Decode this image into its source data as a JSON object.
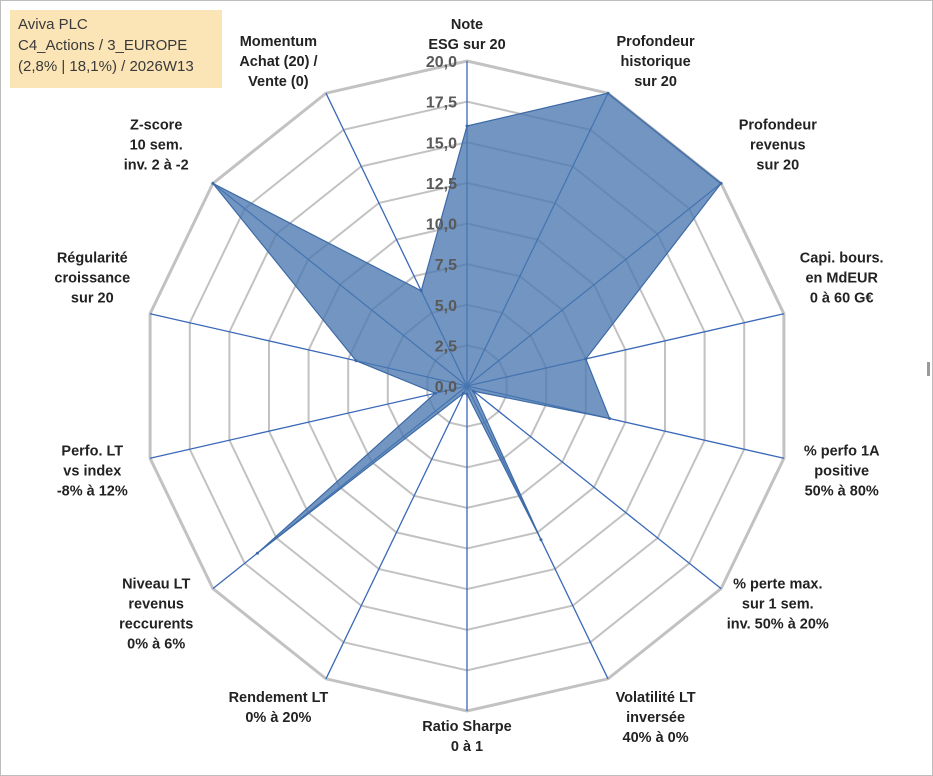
{
  "info": {
    "line1": "Aviva PLC",
    "line2": "C4_Actions / 3_EUROPE",
    "line3": "(2,8% | 18,1%) / 2026W13"
  },
  "colors": {
    "fill": "#4a78b0",
    "axis": "#3a68b8",
    "ring": "#c2c2c2"
  },
  "chart_data": {
    "type": "radar",
    "ylim": [
      0,
      20
    ],
    "ticks": [
      0,
      2.5,
      5,
      7.5,
      10,
      12.5,
      15,
      17.5,
      20
    ],
    "tick_labels": [
      "0,0",
      "2,5",
      "5,0",
      "7,5",
      "10,0",
      "12,5",
      "15,0",
      "17,5",
      "20,0"
    ],
    "categories": [
      [
        "Note",
        "ESG sur 20"
      ],
      [
        "Profondeur",
        "historique",
        "sur 20"
      ],
      [
        "Profondeur",
        "revenus",
        "sur 20"
      ],
      [
        "Capi. bours.",
        "en MdEUR",
        "0 à 60 G€"
      ],
      [
        "% perfo 1A",
        "positive",
        "50% à 80%"
      ],
      [
        "% perte max.",
        "sur 1 sem.",
        "inv. 50% à 20%"
      ],
      [
        "Volatilité LT",
        "inversée",
        "40% à 0%"
      ],
      [
        "Ratio Sharpe",
        "0 à 1"
      ],
      [
        "Rendement LT",
        "0% à 20%"
      ],
      [
        "Niveau LT",
        "revenus",
        "reccurents",
        "0% à 6%"
      ],
      [
        "Perfo. LT",
        "vs index",
        "-8% à 12%"
      ],
      [
        "Régularité",
        "croissance",
        "sur 20"
      ],
      [
        "Z-score",
        "10 sem.",
        "inv. 2 à -2"
      ],
      [
        "Momentum",
        "Achat (20) /",
        "Vente (0)"
      ]
    ],
    "series": [
      {
        "name": "Aviva PLC",
        "values": [
          16.0,
          20.0,
          20.0,
          7.5,
          9.0,
          0.5,
          10.5,
          0.5,
          0.5,
          16.5,
          2.0,
          7.0,
          20.0,
          6.5
        ]
      }
    ]
  }
}
